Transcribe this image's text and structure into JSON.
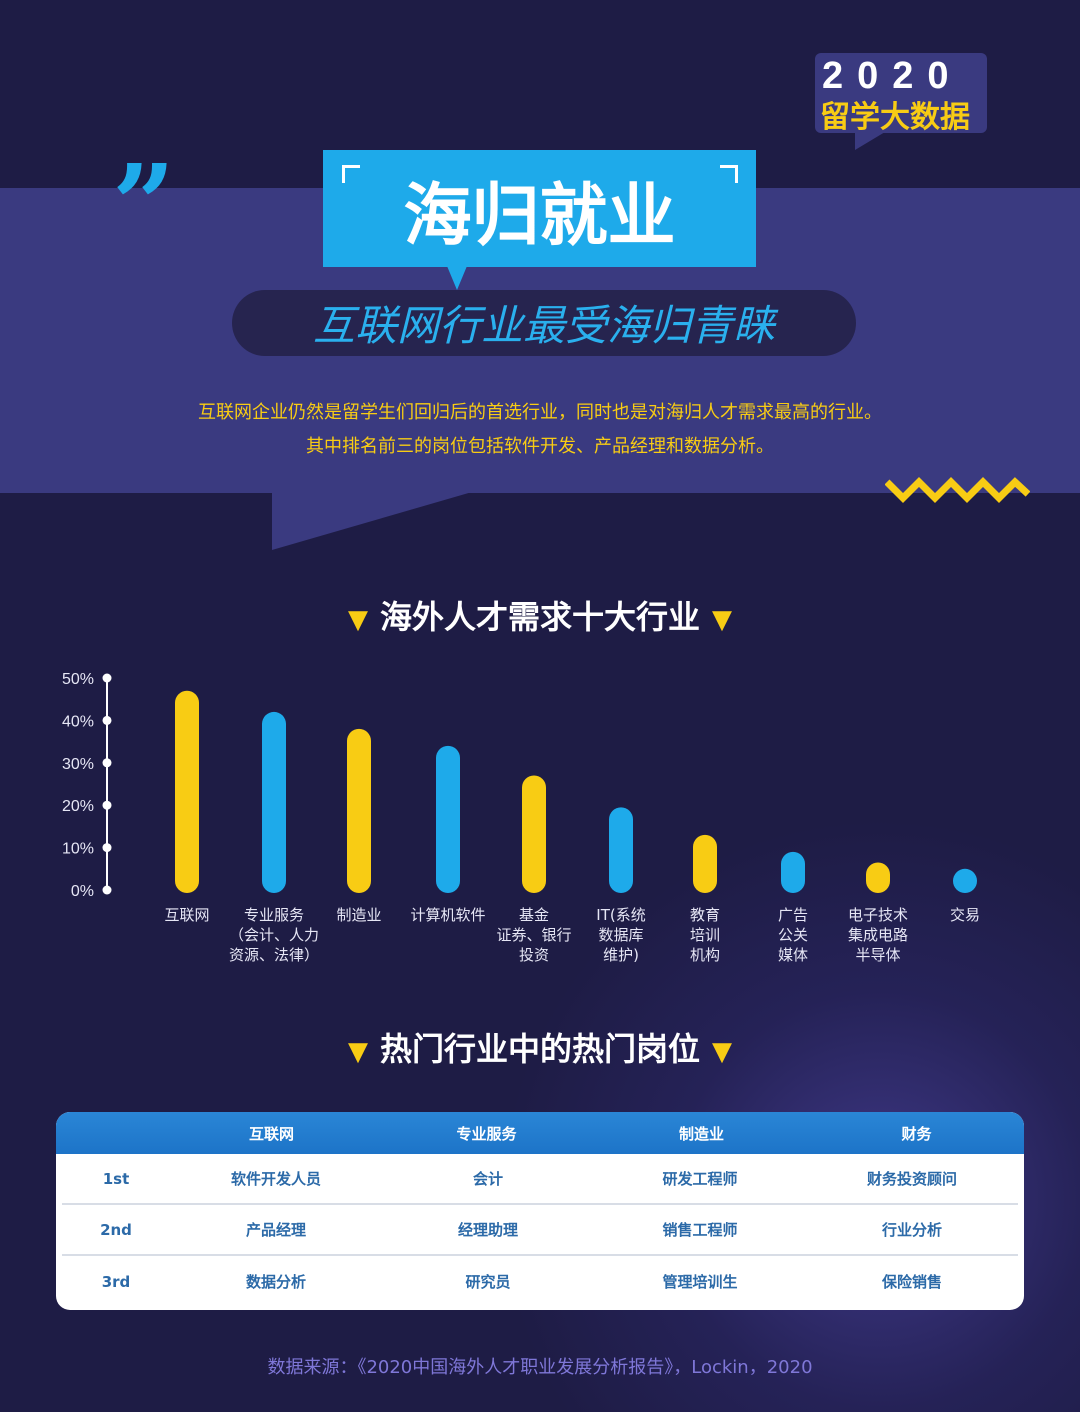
{
  "badge": {
    "year": "2020",
    "subtitle": "留学大数据"
  },
  "header": {
    "title": "海归就业",
    "subtitle": "互联网行业最受海归青睐"
  },
  "description": [
    "互联网企业仍然是留学生们回归后的首选行业，同时也是对海归人才需求最高的行业。",
    "其中排名前三的岗位包括软件开发、产品经理和数据分析。"
  ],
  "colors": {
    "background": "#1e1c45",
    "band": "#3a3a80",
    "blue": "#1eaaea",
    "yellow": "#f8cc14"
  },
  "chart_data": {
    "type": "bar",
    "title": "海外人才需求十大行业",
    "categories": [
      [
        "互联网"
      ],
      [
        "专业服务",
        "（会计、人力",
        "资源、法律）"
      ],
      [
        "制造业"
      ],
      [
        "计算机软件"
      ],
      [
        "基金",
        "证券、银行",
        "投资"
      ],
      [
        "IT(系统",
        "数据库",
        "维护)"
      ],
      [
        "教育",
        "培训",
        "机构"
      ],
      [
        "广告",
        "公关",
        "媒体"
      ],
      [
        "电子技术",
        "集成电路",
        "半导体"
      ],
      [
        "交易"
      ]
    ],
    "values": [
      47,
      42,
      38,
      34,
      27,
      19.5,
      13,
      9,
      6.5,
      5
    ],
    "bar_colors": [
      "#f8cc14",
      "#1eaaea",
      "#f8cc14",
      "#1eaaea",
      "#f8cc14",
      "#1eaaea",
      "#f8cc14",
      "#1eaaea",
      "#f8cc14",
      "#1eaaea"
    ],
    "yticks": [
      "0%",
      "10%",
      "20%",
      "30%",
      "40%",
      "50%"
    ],
    "ylim": [
      0,
      50
    ],
    "grid": false
  },
  "table": {
    "title": "热门行业中的热门岗位",
    "headers": [
      "",
      "互联网",
      "专业服务",
      "制造业",
      "财务"
    ],
    "rows": [
      [
        "1st",
        "软件开发人员",
        "会计",
        "研发工程师",
        "财务投资顾问"
      ],
      [
        "2nd",
        "产品经理",
        "经理助理",
        "销售工程师",
        "行业分析"
      ],
      [
        "3rd",
        "数据分析",
        "研究员",
        "管理培训生",
        "保险销售"
      ]
    ]
  },
  "source": "数据来源：《2020中国海外人才职业发展分析报告》，Lockin，2020"
}
